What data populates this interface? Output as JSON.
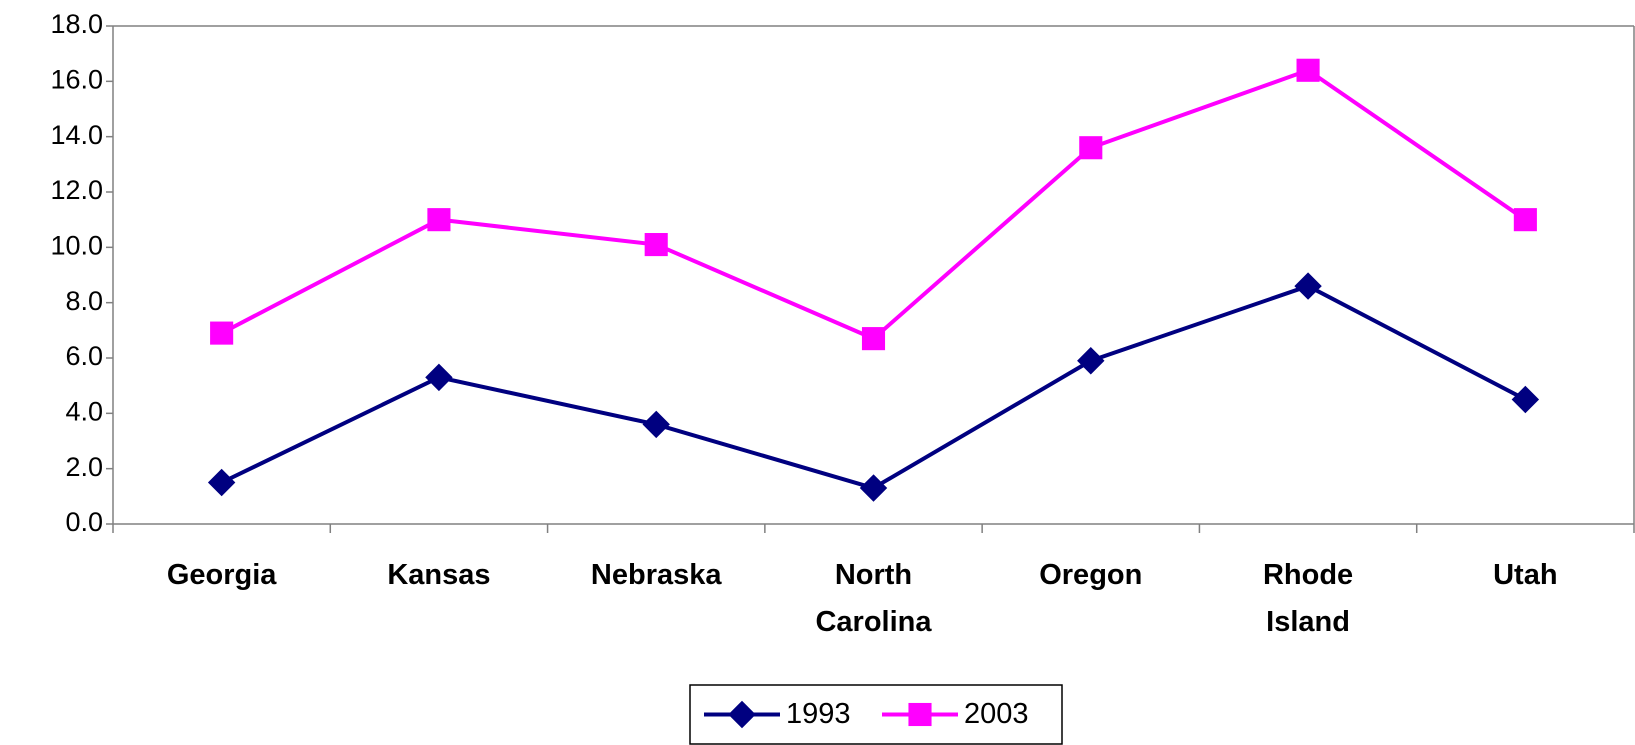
{
  "chart_data": {
    "type": "line",
    "categories": [
      "Georgia",
      "Kansas",
      "Nebraska",
      "North Carolina",
      "Oregon",
      "Rhode Island",
      "Utah"
    ],
    "series": [
      {
        "name": "1993",
        "color": "#000080",
        "marker": "diamond",
        "values": [
          1.5,
          5.3,
          3.6,
          1.3,
          5.9,
          8.6,
          4.5
        ]
      },
      {
        "name": "2003",
        "color": "#ff00ff",
        "marker": "square",
        "values": [
          6.9,
          11.0,
          10.1,
          6.7,
          13.6,
          16.4,
          11.0
        ]
      }
    ],
    "ylim": [
      0,
      18
    ],
    "yticks": [
      {
        "value": 0,
        "label": "0.0"
      },
      {
        "value": 2,
        "label": "2.0"
      },
      {
        "value": 4,
        "label": "4.0"
      },
      {
        "value": 6,
        "label": "6.0"
      },
      {
        "value": 8,
        "label": "8.0"
      },
      {
        "value": 10,
        "label": "10.0"
      },
      {
        "value": 12,
        "label": "12.0"
      },
      {
        "value": 14,
        "label": "14.0"
      },
      {
        "value": 16,
        "label": "16.0"
      },
      {
        "value": 18,
        "label": "18.0"
      }
    ],
    "grid": false,
    "legend": "bottom"
  }
}
